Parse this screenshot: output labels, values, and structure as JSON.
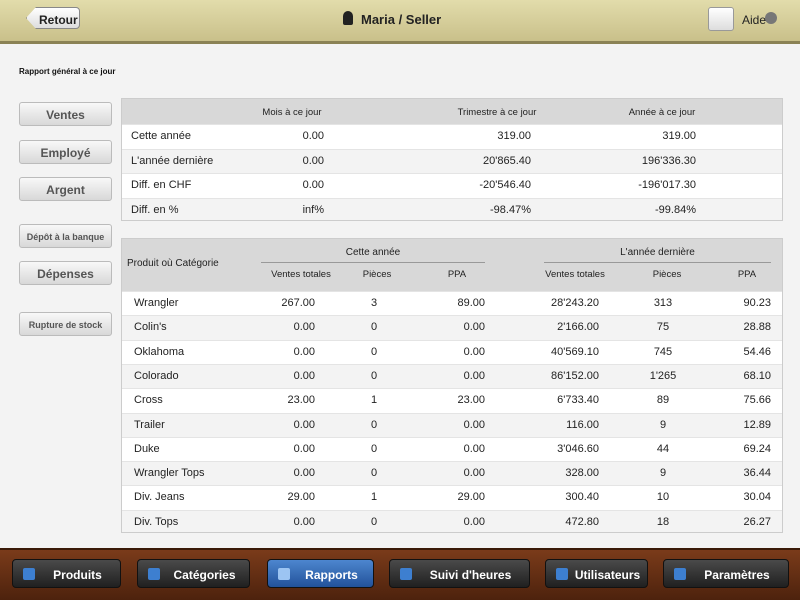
{
  "header": {
    "back": "Retour",
    "user": "Maria / Seller",
    "help": "Aide"
  },
  "report_title": "Rapport général à ce jour",
  "side_menu": [
    "Ventes",
    "Employé",
    "Argent",
    "Dépôt à la banque",
    "Dépenses",
    "Rupture de stock"
  ],
  "summary": {
    "columns": [
      "Mois à ce jour",
      "Trimestre à ce jour",
      "Année à ce jour"
    ],
    "rows": [
      {
        "label": "Cette année",
        "values": [
          "0.00",
          "319.00",
          "319.00"
        ]
      },
      {
        "label": "L'année dernière",
        "values": [
          "0.00",
          "20'865.40",
          "196'336.30"
        ]
      },
      {
        "label": "Diff. en CHF",
        "values": [
          "0.00",
          "-20'546.40",
          "-196'017.30"
        ]
      },
      {
        "label": "Diff. en %",
        "values": [
          "inf%",
          "-98.47%",
          "-99.84%"
        ]
      }
    ]
  },
  "products": {
    "first_header": "Produit où Catégorie",
    "groups": [
      "Cette année",
      "L'année dernière"
    ],
    "columns": [
      "Ventes totales",
      "Pièces",
      "PPA"
    ],
    "rows": [
      [
        "Wrangler",
        "267.00",
        "3",
        "89.00",
        "28'243.20",
        "313",
        "90.23"
      ],
      [
        "Colin's",
        "0.00",
        "0",
        "0.00",
        "2'166.00",
        "75",
        "28.88"
      ],
      [
        "Oklahoma",
        "0.00",
        "0",
        "0.00",
        "40'569.10",
        "745",
        "54.46"
      ],
      [
        "Colorado",
        "0.00",
        "0",
        "0.00",
        "86'152.00",
        "1'265",
        "68.10"
      ],
      [
        "Cross",
        "23.00",
        "1",
        "23.00",
        "6'733.40",
        "89",
        "75.66"
      ],
      [
        "Trailer",
        "0.00",
        "0",
        "0.00",
        "116.00",
        "9",
        "12.89"
      ],
      [
        "Duke",
        "0.00",
        "0",
        "0.00",
        "3'046.60",
        "44",
        "69.24"
      ],
      [
        "Wrangler Tops",
        "0.00",
        "0",
        "0.00",
        "328.00",
        "9",
        "36.44"
      ],
      [
        "Div. Jeans",
        "29.00",
        "1",
        "29.00",
        "300.40",
        "10",
        "30.04"
      ],
      [
        "Div. Tops",
        "0.00",
        "0",
        "0.00",
        "472.80",
        "18",
        "26.27"
      ]
    ]
  },
  "tabs": [
    "Produits",
    "Catégories",
    "Rapports",
    "Suivi d'heures",
    "Utilisateurs",
    "Paramètres"
  ],
  "active_tab": 2
}
